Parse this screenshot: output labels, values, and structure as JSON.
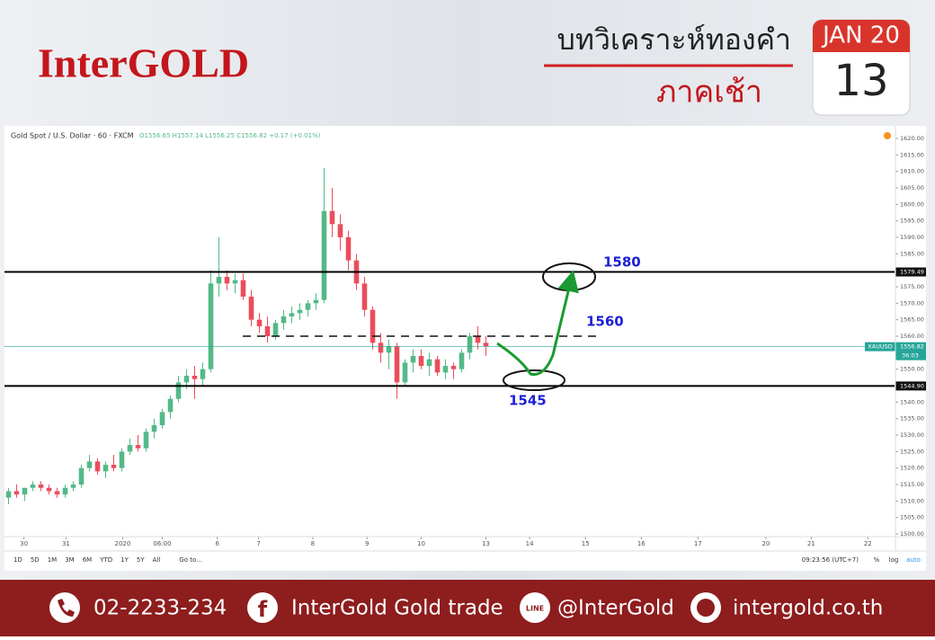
{
  "header": {
    "logo": "InterGOLD",
    "title": "บทวิเคราะห์ทองคำ",
    "subtitle": "ภาคเช้า",
    "month_year": "JAN 20",
    "day": "13"
  },
  "chart_data": {
    "type": "candlestick",
    "title": "Gold Spot / U.S. Dollar · 60 · FXCM",
    "ohlc_text": "O1556.65 H1557.14 L1556.25 C1556.82 +0.17 (+0.01%)",
    "colors": {
      "up": "#53b987",
      "down": "#eb4d5c"
    },
    "open": [
      1511,
      1513,
      1512,
      1514,
      1515,
      1514,
      1513,
      1512,
      1514,
      1515,
      1520,
      1522,
      1519,
      1521,
      1520,
      1525,
      1527,
      1526,
      1531,
      1533,
      1537,
      1541,
      1546,
      1548,
      1547,
      1550,
      1576,
      1578,
      1576,
      1577,
      1572,
      1565,
      1563,
      1560,
      1564,
      1566,
      1567,
      1568,
      1570,
      1571,
      1598,
      1594,
      1590,
      1583,
      1576,
      1568,
      1558,
      1555,
      1557,
      1546,
      1552,
      1554,
      1551,
      1553,
      1549,
      1551,
      1550,
      1555,
      1560,
      1558
    ],
    "high": [
      1514,
      1515,
      1514,
      1516,
      1516,
      1515,
      1514,
      1515,
      1516,
      1521,
      1524,
      1523,
      1522,
      1524,
      1526,
      1529,
      1530,
      1532,
      1535,
      1538,
      1542,
      1548,
      1550,
      1551,
      1552,
      1580,
      1590,
      1580,
      1579,
      1579,
      1574,
      1567,
      1566,
      1565,
      1568,
      1569,
      1570,
      1571,
      1573,
      1611,
      1605,
      1597,
      1592,
      1585,
      1578,
      1569,
      1561,
      1559,
      1558,
      1553,
      1556,
      1556,
      1555,
      1554,
      1553,
      1552,
      1556,
      1561,
      1563,
      1560
    ],
    "low": [
      1509,
      1511,
      1510,
      1513,
      1513,
      1512,
      1511,
      1511,
      1513,
      1514,
      1519,
      1518,
      1517,
      1519,
      1519,
      1524,
      1525,
      1525,
      1529,
      1532,
      1535,
      1540,
      1544,
      1541,
      1545,
      1549,
      1572,
      1574,
      1573,
      1571,
      1563,
      1561,
      1558,
      1559,
      1562,
      1564,
      1565,
      1566,
      1568,
      1570,
      1590,
      1586,
      1580,
      1574,
      1566,
      1556,
      1552,
      1550,
      1541,
      1545,
      1549,
      1550,
      1548,
      1548,
      1547,
      1547,
      1549,
      1553,
      1556,
      1554
    ],
    "close": [
      1513,
      1512,
      1514,
      1515,
      1514,
      1513,
      1512,
      1514,
      1515,
      1520,
      1522,
      1519,
      1521,
      1520,
      1525,
      1527,
      1526,
      1531,
      1533,
      1537,
      1541,
      1546,
      1548,
      1547,
      1550,
      1576,
      1578,
      1576,
      1577,
      1572,
      1565,
      1563,
      1560,
      1564,
      1566,
      1567,
      1568,
      1570,
      1571,
      1598,
      1594,
      1590,
      1583,
      1576,
      1568,
      1558,
      1555,
      1557,
      1546,
      1552,
      1554,
      1551,
      1553,
      1549,
      1551,
      1550,
      1555,
      1560,
      1558,
      1557
    ],
    "xlim": [
      -0.5,
      109.5
    ],
    "xticks": [
      {
        "value": 1.9,
        "label": "30"
      },
      {
        "value": 7.1,
        "label": "31"
      },
      {
        "value": 14.1,
        "label": "2020"
      },
      {
        "value": 19,
        "label": "06:00"
      },
      {
        "value": 25.8,
        "label": "6"
      },
      {
        "value": 30.9,
        "label": "7"
      },
      {
        "value": 37.6,
        "label": "8"
      },
      {
        "value": 44.3,
        "label": "9"
      },
      {
        "value": 51,
        "label": "10"
      },
      {
        "value": 59,
        "label": "13"
      },
      {
        "value": 64.4,
        "label": "14"
      },
      {
        "value": 71.3,
        "label": "15"
      },
      {
        "value": 78.2,
        "label": "16"
      },
      {
        "value": 85.2,
        "label": "17"
      },
      {
        "value": 93.6,
        "label": "20"
      },
      {
        "value": 99.2,
        "label": "21"
      },
      {
        "value": 106.2,
        "label": "22"
      }
    ],
    "ylim": [
      1499.2,
      1623
    ],
    "yticks": [
      {
        "value": 1620,
        "label": "1620.00"
      },
      {
        "value": 1615,
        "label": "1615.00"
      },
      {
        "value": 1610,
        "label": "1610.00"
      },
      {
        "value": 1605,
        "label": "1605.00"
      },
      {
        "value": 1600,
        "label": "1600.00"
      },
      {
        "value": 1595,
        "label": "1595.00"
      },
      {
        "value": 1590,
        "label": "1590.00"
      },
      {
        "value": 1585,
        "label": "1585.00"
      },
      {
        "value": 1580,
        "label": "1580.00"
      },
      {
        "value": 1575,
        "label": "1575.00"
      },
      {
        "value": 1570,
        "label": "1570.00"
      },
      {
        "value": 1565,
        "label": "1565.00"
      },
      {
        "value": 1560,
        "label": "1560.00"
      },
      {
        "value": 1555,
        "label": "1555.00"
      },
      {
        "value": 1550,
        "label": "1550.00"
      },
      {
        "value": 1545,
        "label": "1545.00"
      },
      {
        "value": 1540,
        "label": "1540.00"
      },
      {
        "value": 1535,
        "label": "1535.00"
      },
      {
        "value": 1530,
        "label": "1530.00"
      },
      {
        "value": 1525,
        "label": "1525.00"
      },
      {
        "value": 1520,
        "label": "1520.00"
      },
      {
        "value": 1515,
        "label": "1515.00"
      },
      {
        "value": 1510,
        "label": "1510.00"
      },
      {
        "value": 1505,
        "label": "1505.00"
      },
      {
        "value": 1500,
        "label": "1500.00"
      }
    ],
    "levels": [
      {
        "value": 1579.49,
        "label": "1579.49"
      },
      {
        "value": 1544.9,
        "label": "1544.90"
      }
    ],
    "dashed_level": 1560,
    "current_price": {
      "value": 1556.82,
      "label": "1556.82",
      "symbol": "XAUUSD",
      "countdown": "36:03"
    },
    "annotations": [
      "1580",
      "1560",
      "1545"
    ],
    "toolbar": [
      "1D",
      "5D",
      "1M",
      "3M",
      "6M",
      "YTD",
      "1Y",
      "5Y",
      "All"
    ],
    "goto": "Go to...",
    "clock": "09:23:56 (UTC+7)",
    "scale_options": [
      "%",
      "log",
      "auto"
    ]
  },
  "footer": {
    "phone": "02-2233-234",
    "facebook": "InterGold Gold trade",
    "line": "@InterGold",
    "website": "intergold.co.th"
  }
}
